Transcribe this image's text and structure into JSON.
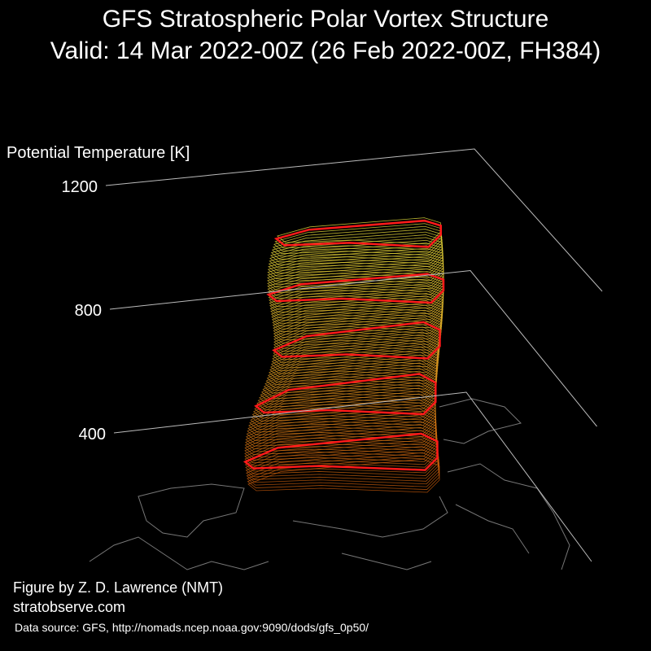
{
  "chart_data": {
    "type": "surface",
    "title": "GFS Stratospheric Polar Vortex Structure",
    "subtitle": "Valid: 14 Mar 2022-00Z  (26 Feb 2022-00Z, FH384)",
    "ylabel": "Potential Temperature [K]",
    "ylim": [
      400,
      1200
    ],
    "yticks": [
      400,
      800,
      1200
    ],
    "grid": true,
    "annotations": [
      "Figure by Z. D. Lawrence (NMT)",
      "stratobserve.com",
      "Data source: GFS, http://nomads.ncep.noaa.gov:9090/dods/gfs_0p50/"
    ]
  }
}
